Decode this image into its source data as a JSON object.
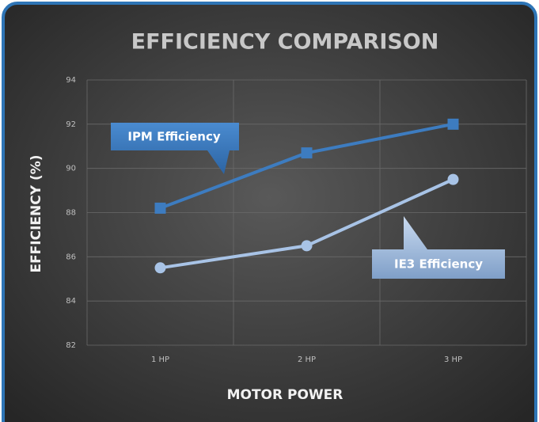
{
  "chart_data": {
    "type": "line",
    "title": "EFFICIENCY COMPARISON",
    "x_label": "MOTOR POWER",
    "y_label": "EFFICIENCY (%)",
    "categories": [
      "1 HP",
      "2 HP",
      "3 HP"
    ],
    "series": [
      {
        "name": "IPM Efficiency",
        "color": "#3d7cc0",
        "marker": "square",
        "values": [
          88.2,
          90.7,
          92.0
        ]
      },
      {
        "name": "IE3 Efficiency",
        "color": "#a8c3e6",
        "marker": "circle",
        "values": [
          85.5,
          86.5,
          89.5
        ]
      }
    ],
    "ylim": [
      82,
      94
    ],
    "yticks": [
      82,
      84,
      86,
      88,
      90,
      92,
      94
    ],
    "grid": true
  }
}
